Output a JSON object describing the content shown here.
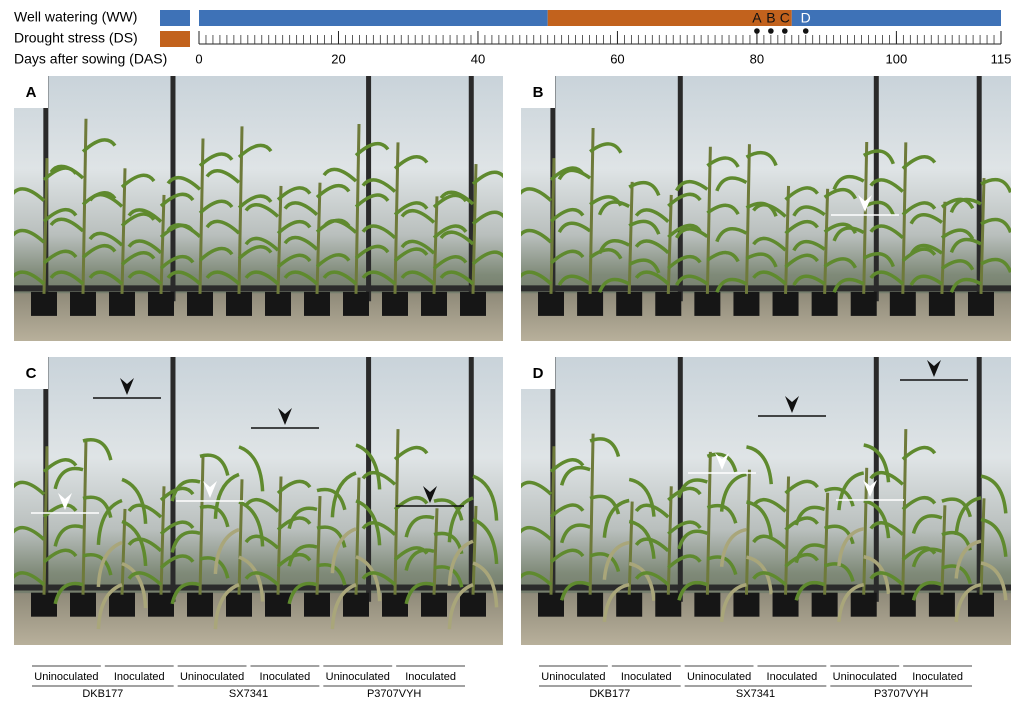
{
  "timeline": {
    "legend": [
      {
        "label": "Well watering (WW)",
        "color": "#3e72b7"
      },
      {
        "label": "Drought stress (DS)",
        "color": "#c2621d"
      }
    ],
    "axis_label": "Days after sowing (DAS)",
    "xlim": [
      0,
      115
    ],
    "xticks": [
      0,
      20,
      40,
      60,
      80,
      100,
      115
    ],
    "periods": [
      {
        "start": 0,
        "end": 50,
        "color": "#3e72b7"
      },
      {
        "start": 50,
        "end": 85,
        "color": "#c2621d"
      },
      {
        "start": 85,
        "end": 115,
        "color": "#3e72b7"
      }
    ],
    "timepoints": [
      {
        "label": "A",
        "day": 80,
        "label_color": "#111111"
      },
      {
        "label": "B",
        "day": 82,
        "label_color": "#111111"
      },
      {
        "label": "C",
        "day": 84,
        "label_color": "#111111"
      },
      {
        "label": "D",
        "day": 87,
        "label_color": "#ffffff"
      }
    ]
  },
  "panels": [
    {
      "label": "A"
    },
    {
      "label": "B"
    },
    {
      "label": "C"
    },
    {
      "label": "D"
    }
  ],
  "groups": {
    "treatments": [
      "Uninoculated",
      "Inoculated",
      "Uninoculated",
      "Inoculated",
      "Uninoculated",
      "Inoculated"
    ],
    "hybrids": [
      "DKB177",
      "SX7341",
      "P3707VYH"
    ]
  }
}
